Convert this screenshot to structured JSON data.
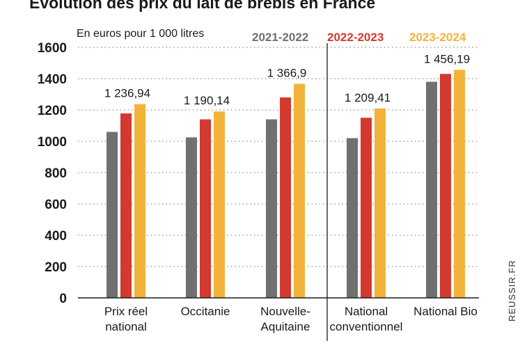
{
  "chart_data": {
    "type": "bar",
    "title": "Évolution des prix du lait de brebis en France",
    "ylabel": "En euros pour 1 000 litres",
    "ylim": [
      0,
      1600
    ],
    "yticks": [
      "0",
      "200",
      "400",
      "600",
      "800",
      "1000",
      "1200",
      "1400",
      "1600"
    ],
    "categories": [
      [
        "Prix réel",
        "national"
      ],
      [
        "Occitanie"
      ],
      [
        "Nouvelle-",
        "Aquitaine"
      ],
      [
        "National",
        "conventionnel"
      ],
      [
        "National Bio"
      ]
    ],
    "series": [
      {
        "name": "2021-2022",
        "color": "#707070",
        "values": [
          1060,
          1025,
          1140,
          1020,
          1380
        ]
      },
      {
        "name": "2022-2023",
        "color": "#d23a30",
        "values": [
          1178,
          1140,
          1280,
          1150,
          1430
        ]
      },
      {
        "name": "2023-2024",
        "color": "#f3b23a",
        "values": [
          1236.94,
          1190.14,
          1366.9,
          1209.41,
          1456.19
        ]
      }
    ],
    "data_labels": [
      "1 236,94",
      "1 190,14",
      "1 366,9",
      "1 209,41",
      "1 456,19"
    ],
    "grid": true,
    "source": "REUSSIR.FR"
  }
}
